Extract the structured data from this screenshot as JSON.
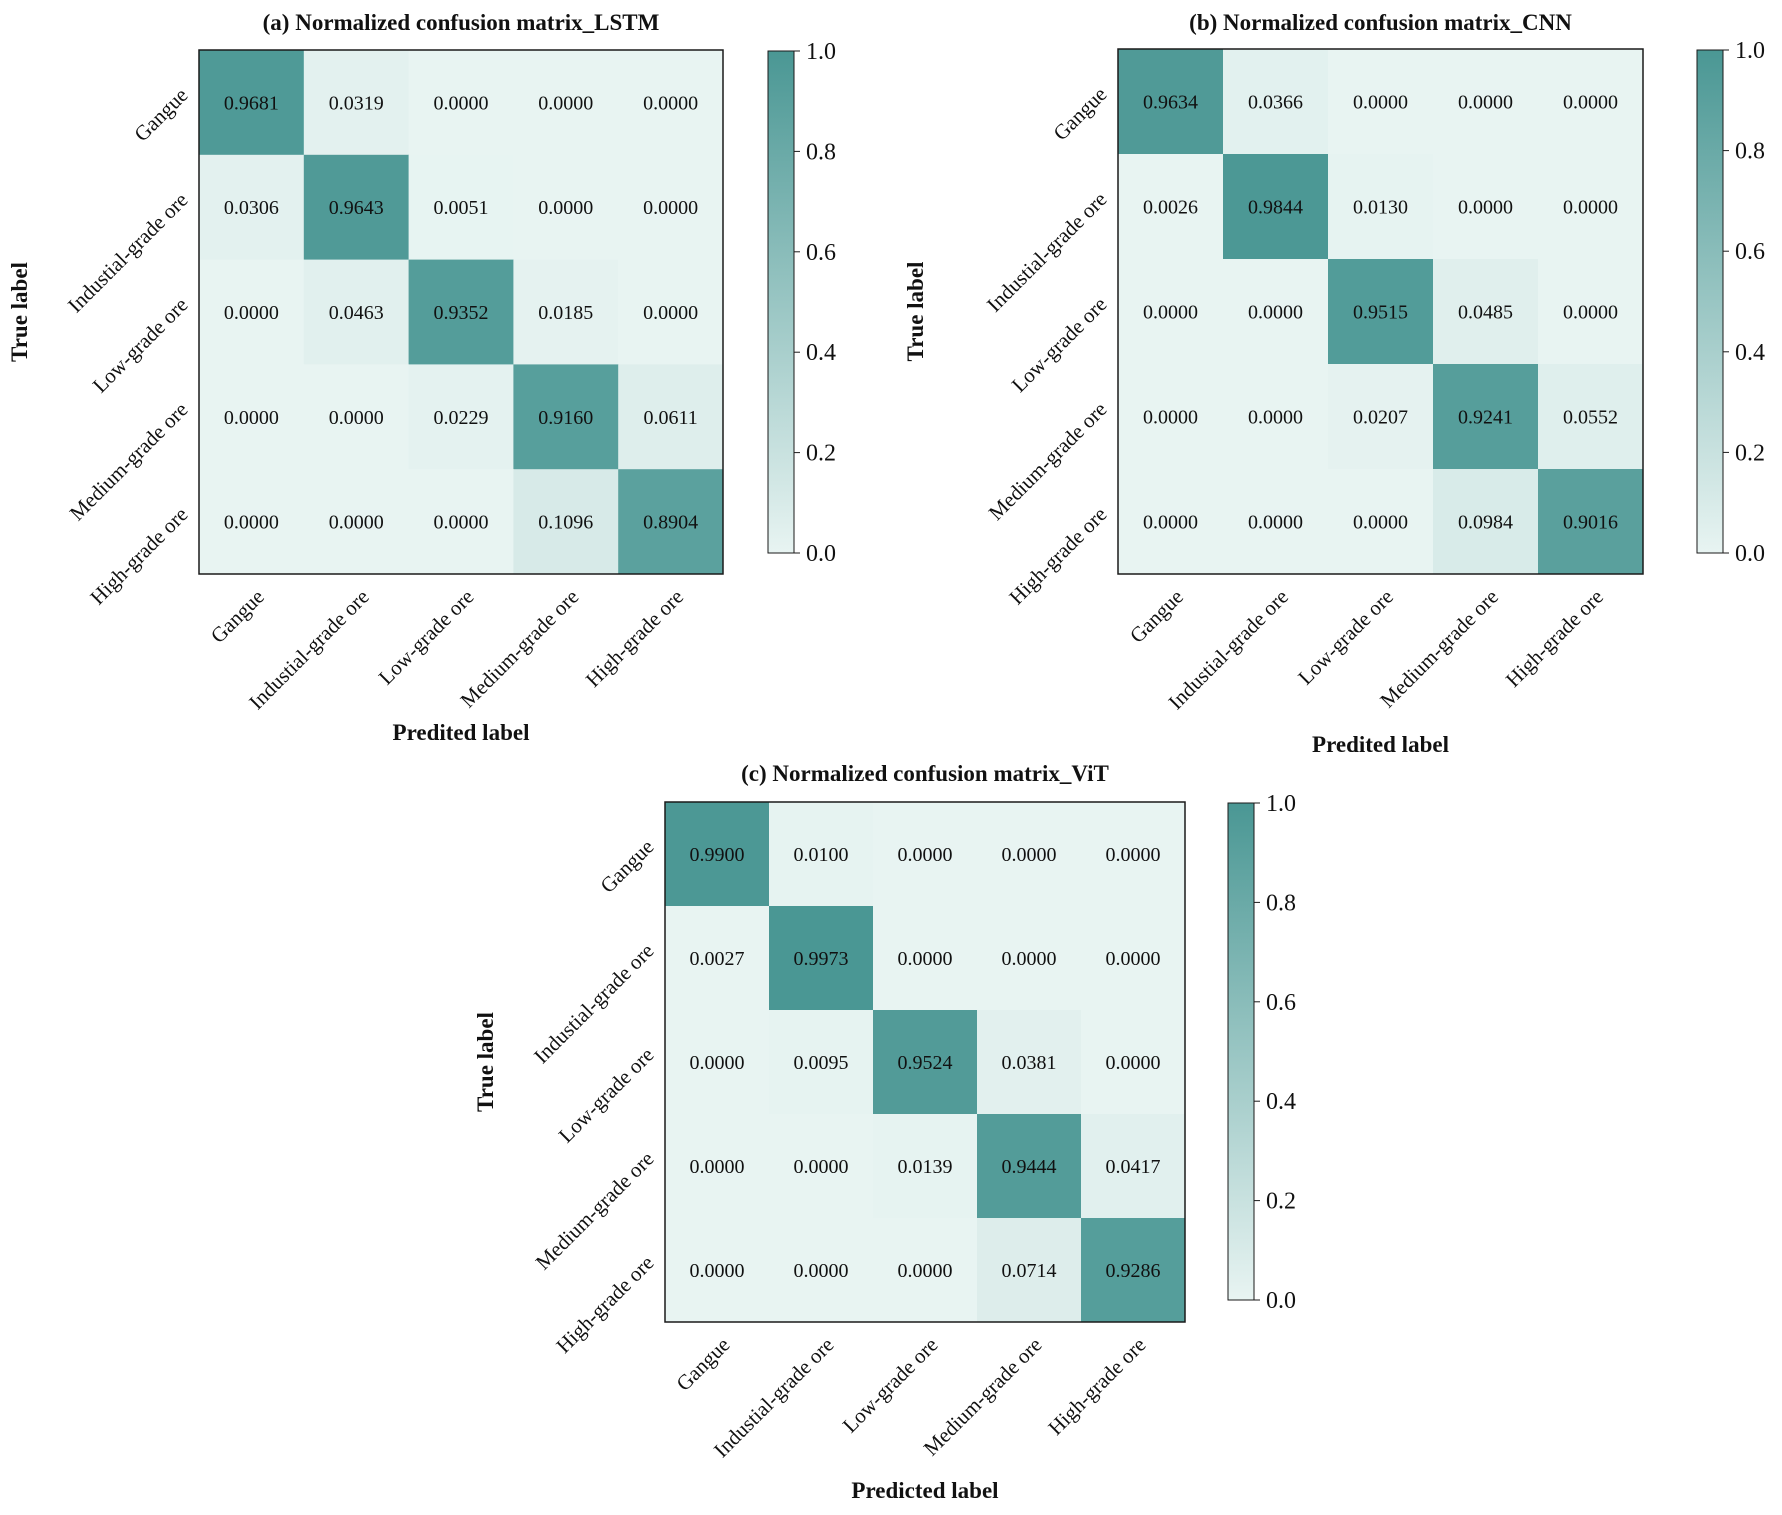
{
  "colors": {
    "low": "#e8f4f2",
    "high": "#4a9794",
    "frame": "#1a1a1a",
    "text": "#111111"
  },
  "chart_data": [
    {
      "type": "heatmap",
      "title": "(a) Normalized confusion matrix_LSTM",
      "xlabel": "Predited label",
      "ylabel": "True label",
      "x_categories": [
        "Gangue",
        "Industial-grade ore",
        "Low-grade ore",
        "Medium-grade ore",
        "High-grade ore"
      ],
      "y_categories": [
        "Gangue",
        "Industial-grade ore",
        "Low-grade ore",
        "Medium-grade ore",
        "High-grade ore"
      ],
      "values": [
        [
          0.9681,
          0.0319,
          0.0,
          0.0,
          0.0
        ],
        [
          0.0306,
          0.9643,
          0.0051,
          0.0,
          0.0
        ],
        [
          0.0,
          0.0463,
          0.9352,
          0.0185,
          0.0
        ],
        [
          0.0,
          0.0,
          0.0229,
          0.916,
          0.0611
        ],
        [
          0.0,
          0.0,
          0.0,
          0.1096,
          0.8904
        ]
      ],
      "colorbar": {
        "range": [
          0.0,
          1.0
        ],
        "ticks": [
          "0.0",
          "0.2",
          "0.4",
          "0.6",
          "0.8",
          "1.0"
        ]
      }
    },
    {
      "type": "heatmap",
      "title": "(b) Normalized confusion matrix_CNN",
      "xlabel": "Predited label",
      "ylabel": "True label",
      "x_categories": [
        "Gangue",
        "Industial-grade ore",
        "Low-grade ore",
        "Medium-grade ore",
        "High-grade ore"
      ],
      "y_categories": [
        "Gangue",
        "Industial-grade ore",
        "Low-grade ore",
        "Medium-grade ore",
        "High-grade ore"
      ],
      "values": [
        [
          0.9634,
          0.0366,
          0.0,
          0.0,
          0.0
        ],
        [
          0.0026,
          0.9844,
          0.013,
          0.0,
          0.0
        ],
        [
          0.0,
          0.0,
          0.9515,
          0.0485,
          0.0
        ],
        [
          0.0,
          0.0,
          0.0207,
          0.9241,
          0.0552
        ],
        [
          0.0,
          0.0,
          0.0,
          0.0984,
          0.9016
        ]
      ],
      "colorbar": {
        "range": [
          0.0,
          1.0
        ],
        "ticks": [
          "0.0",
          "0.2",
          "0.4",
          "0.6",
          "0.8",
          "1.0"
        ]
      }
    },
    {
      "type": "heatmap",
      "title": "(c) Normalized confusion matrix_ViT",
      "xlabel": "Predicted label",
      "ylabel": "True label",
      "x_categories": [
        "Gangue",
        "Industial-grade ore",
        "Low-grade ore",
        "Medium-grade ore",
        "High-grade ore"
      ],
      "y_categories": [
        "Gangue",
        "Industial-grade ore",
        "Low-grade ore",
        "Medium-grade ore",
        "High-grade ore"
      ],
      "values": [
        [
          0.99,
          0.01,
          0.0,
          0.0,
          0.0
        ],
        [
          0.0027,
          0.9973,
          0.0,
          0.0,
          0.0
        ],
        [
          0.0,
          0.0095,
          0.9524,
          0.0381,
          0.0
        ],
        [
          0.0,
          0.0,
          0.0139,
          0.9444,
          0.0417
        ],
        [
          0.0,
          0.0,
          0.0,
          0.0714,
          0.9286
        ]
      ],
      "colorbar": {
        "range": [
          0.0,
          1.0
        ],
        "ticks": [
          "0.0",
          "0.2",
          "0.4",
          "0.6",
          "0.8",
          "1.0"
        ]
      }
    }
  ]
}
